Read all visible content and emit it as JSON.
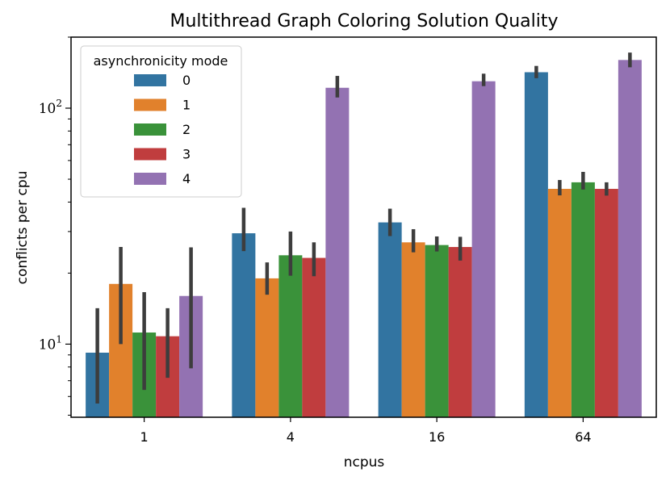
{
  "chart_data": {
    "type": "bar",
    "title": "Multithread Graph Coloring Solution Quality",
    "xlabel": "ncpus",
    "ylabel": "conflicts per cpu",
    "yscale": "log",
    "ylim": [
      4.9,
      200
    ],
    "categories": [
      "1",
      "4",
      "16",
      "64"
    ],
    "yticks_major": [
      {
        "value": 10,
        "base": "10",
        "exp": "1"
      },
      {
        "value": 100,
        "base": "10",
        "exp": "2"
      }
    ],
    "yticks_minor": [
      5,
      6,
      7,
      8,
      9,
      20,
      30,
      40,
      50,
      60,
      70,
      80,
      90,
      200
    ],
    "legend": {
      "title": "asynchronicity mode",
      "position": "upper-left"
    },
    "series": [
      {
        "name": "0",
        "color": "#3274a1",
        "values": [
          9.2,
          29.5,
          32.8,
          142
        ],
        "err_low": [
          5.6,
          24.8,
          28.7,
          134
        ],
        "err_high": [
          14.2,
          37.8,
          37.5,
          151
        ]
      },
      {
        "name": "1",
        "color": "#e1812c",
        "values": [
          18.0,
          19.0,
          27.0,
          45.5
        ],
        "err_low": [
          10.0,
          16.2,
          24.5,
          42.7
        ],
        "err_high": [
          25.8,
          22.2,
          30.7,
          49.6
        ]
      },
      {
        "name": "2",
        "color": "#3a923a",
        "values": [
          11.2,
          23.8,
          26.3,
          48.5
        ],
        "err_low": [
          6.4,
          19.5,
          24.7,
          45.2
        ],
        "err_high": [
          16.6,
          30.0,
          28.6,
          53.7
        ]
      },
      {
        "name": "3",
        "color": "#c03d3e",
        "values": [
          10.8,
          23.2,
          25.8,
          45.5
        ],
        "err_low": [
          7.2,
          19.4,
          22.6,
          42.6
        ],
        "err_high": [
          14.2,
          27.0,
          28.5,
          48.5
        ]
      },
      {
        "name": "4",
        "color": "#9372b2",
        "values": [
          16.0,
          122,
          130,
          160
        ],
        "err_low": [
          7.9,
          111,
          124,
          149
        ],
        "err_high": [
          25.7,
          137,
          140,
          172
        ]
      }
    ]
  }
}
